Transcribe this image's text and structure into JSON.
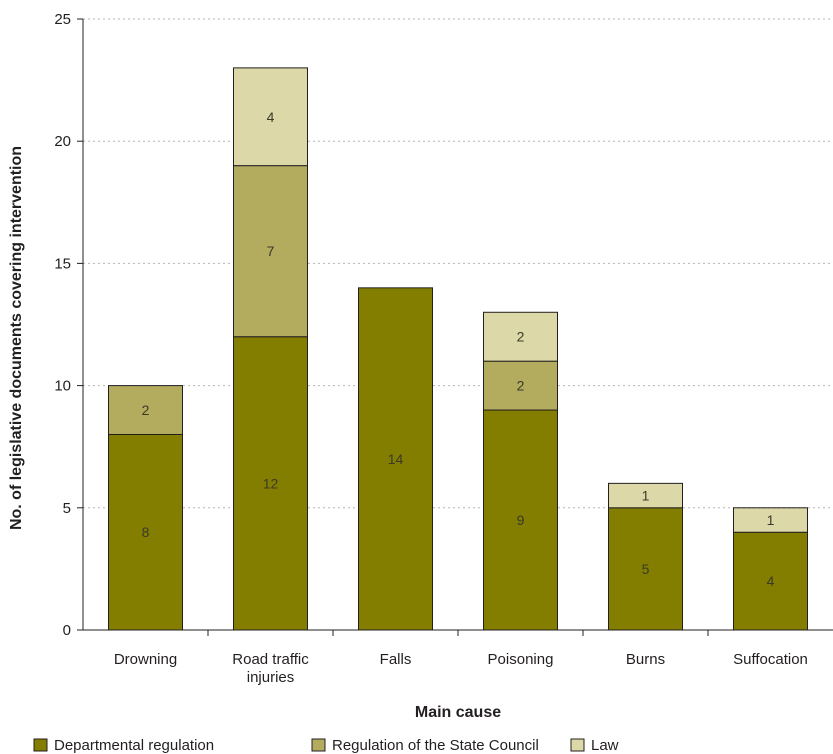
{
  "chart_data": {
    "type": "bar",
    "stacked": true,
    "title": "",
    "xlabel": "Main cause",
    "ylabel": "No. of legislative documents covering intervention",
    "ylim": [
      0,
      25
    ],
    "yticks": [
      0,
      5,
      10,
      15,
      20,
      25
    ],
    "grid": "horizontal dotted",
    "legend_position": "bottom",
    "categories": [
      [
        "Drowning"
      ],
      [
        "Road traffic",
        "injuries"
      ],
      [
        "Falls"
      ],
      [
        "Poisoning"
      ],
      [
        "Burns"
      ],
      [
        "Suffocation"
      ]
    ],
    "series": [
      {
        "name": "Departmental regulation",
        "color": "#847e00",
        "values": [
          8,
          12,
          14,
          9,
          5,
          4
        ]
      },
      {
        "name": "Regulation of the State Council",
        "color": "#b3ac5f",
        "values": [
          2,
          7,
          0,
          2,
          0,
          0
        ]
      },
      {
        "name": "Law",
        "color": "#dcd8a8",
        "values": [
          0,
          4,
          0,
          2,
          1,
          1
        ]
      }
    ]
  }
}
